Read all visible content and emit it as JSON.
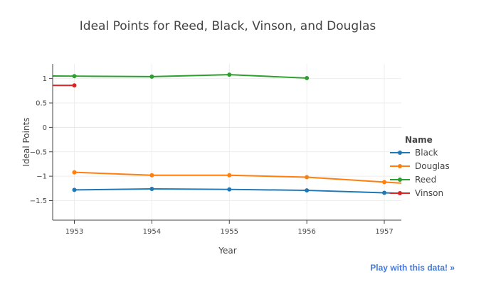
{
  "link": {
    "play": "Play with this data! »"
  },
  "chart_data": {
    "type": "line",
    "title": "Ideal Points for Reed, Black, Vinson, and Douglas",
    "xlabel": "Year",
    "ylabel": "Ideal Points",
    "xlim": [
      1952.72,
      1957.22
    ],
    "ylim": [
      -1.9,
      1.3
    ],
    "x_ticks": [
      "1953",
      "1954",
      "1955",
      "1956",
      "1957"
    ],
    "y_ticks": [
      "1",
      "0.5",
      "0",
      "−0.5",
      "−1",
      "−1.5"
    ],
    "y_tick_values": [
      1,
      0.5,
      0,
      -0.5,
      -1,
      -1.5
    ],
    "grid": true,
    "legend_title": "Name",
    "legend_position": "right",
    "series": [
      {
        "name": "Black",
        "color": "#1f77b4",
        "x": [
          1953,
          1954,
          1955,
          1956,
          1957
        ],
        "y": [
          -1.28,
          -1.26,
          -1.27,
          -1.29,
          -1.34
        ],
        "extends_right": true
      },
      {
        "name": "Douglas",
        "color": "#ff7f0e",
        "x": [
          1953,
          1954,
          1955,
          1956,
          1957
        ],
        "y": [
          -0.92,
          -0.98,
          -0.98,
          -1.02,
          -1.12
        ],
        "extends_right": true
      },
      {
        "name": "Reed",
        "color": "#2ca02c",
        "x": [
          1953,
          1954,
          1955,
          1956
        ],
        "y": [
          1.05,
          1.04,
          1.08,
          1.01
        ],
        "extends_left": true
      },
      {
        "name": "Vinson",
        "color": "#d62728",
        "x": [
          1953
        ],
        "y": [
          0.86
        ],
        "extends_left": true
      }
    ]
  }
}
